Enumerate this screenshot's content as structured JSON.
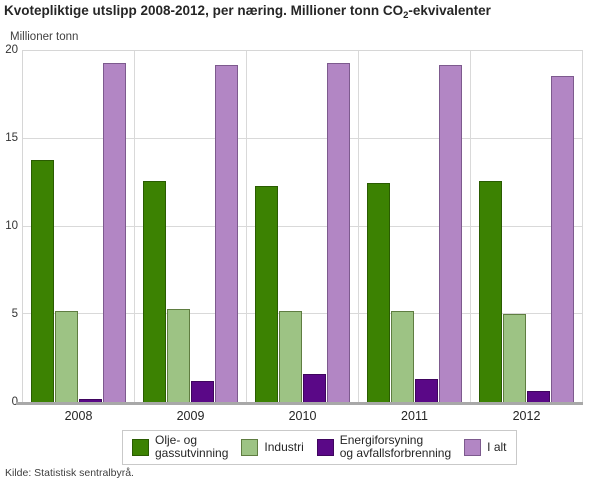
{
  "header": {
    "title_prefix": "Kvotepliktige utslipp 2008-2012, per næring. Millioner tonn CO",
    "title_sub": "2",
    "title_suffix": "-ekvivalenter"
  },
  "chart_data": {
    "type": "bar",
    "title": "Kvotepliktige utslipp 2008-2012, per næring. Millioner tonn CO₂-ekvivalenter",
    "ylabel": "Millioner tonn",
    "xlabel": "",
    "categories": [
      "2008",
      "2009",
      "2010",
      "2011",
      "2012"
    ],
    "series": [
      {
        "name": "Olje- og gassutvinning",
        "color": "#3c8202",
        "border_color": "#2a5c01",
        "values": [
          13.8,
          12.6,
          12.3,
          12.5,
          12.6
        ]
      },
      {
        "name": "Industri",
        "color": "#9dc384",
        "border_color": "#5f7d41",
        "values": [
          5.2,
          5.3,
          5.2,
          5.2,
          5.0
        ]
      },
      {
        "name": "Energiforsyning og avfallsforbrenning",
        "color": "#5a0887",
        "border_color": "#3f055e",
        "values": [
          0.2,
          1.2,
          1.6,
          1.3,
          0.6
        ]
      },
      {
        "name": "I alt",
        "color": "#b286c4",
        "border_color": "#7d5a8e",
        "values": [
          19.3,
          19.2,
          19.3,
          19.2,
          18.6
        ]
      }
    ],
    "ylim": [
      0,
      20
    ],
    "yticks": [
      0,
      5,
      10,
      15,
      20
    ],
    "grid": true,
    "legend_position": "bottom"
  },
  "legend": {
    "items": [
      {
        "label": "Olje- og\ngassutvinning"
      },
      {
        "label": "Industri"
      },
      {
        "label": "Energiforsyning\nog avfallsforbrenning"
      },
      {
        "label": "I alt"
      }
    ]
  },
  "footer": {
    "source": "Kilde: Statistisk sentralbyrå."
  }
}
